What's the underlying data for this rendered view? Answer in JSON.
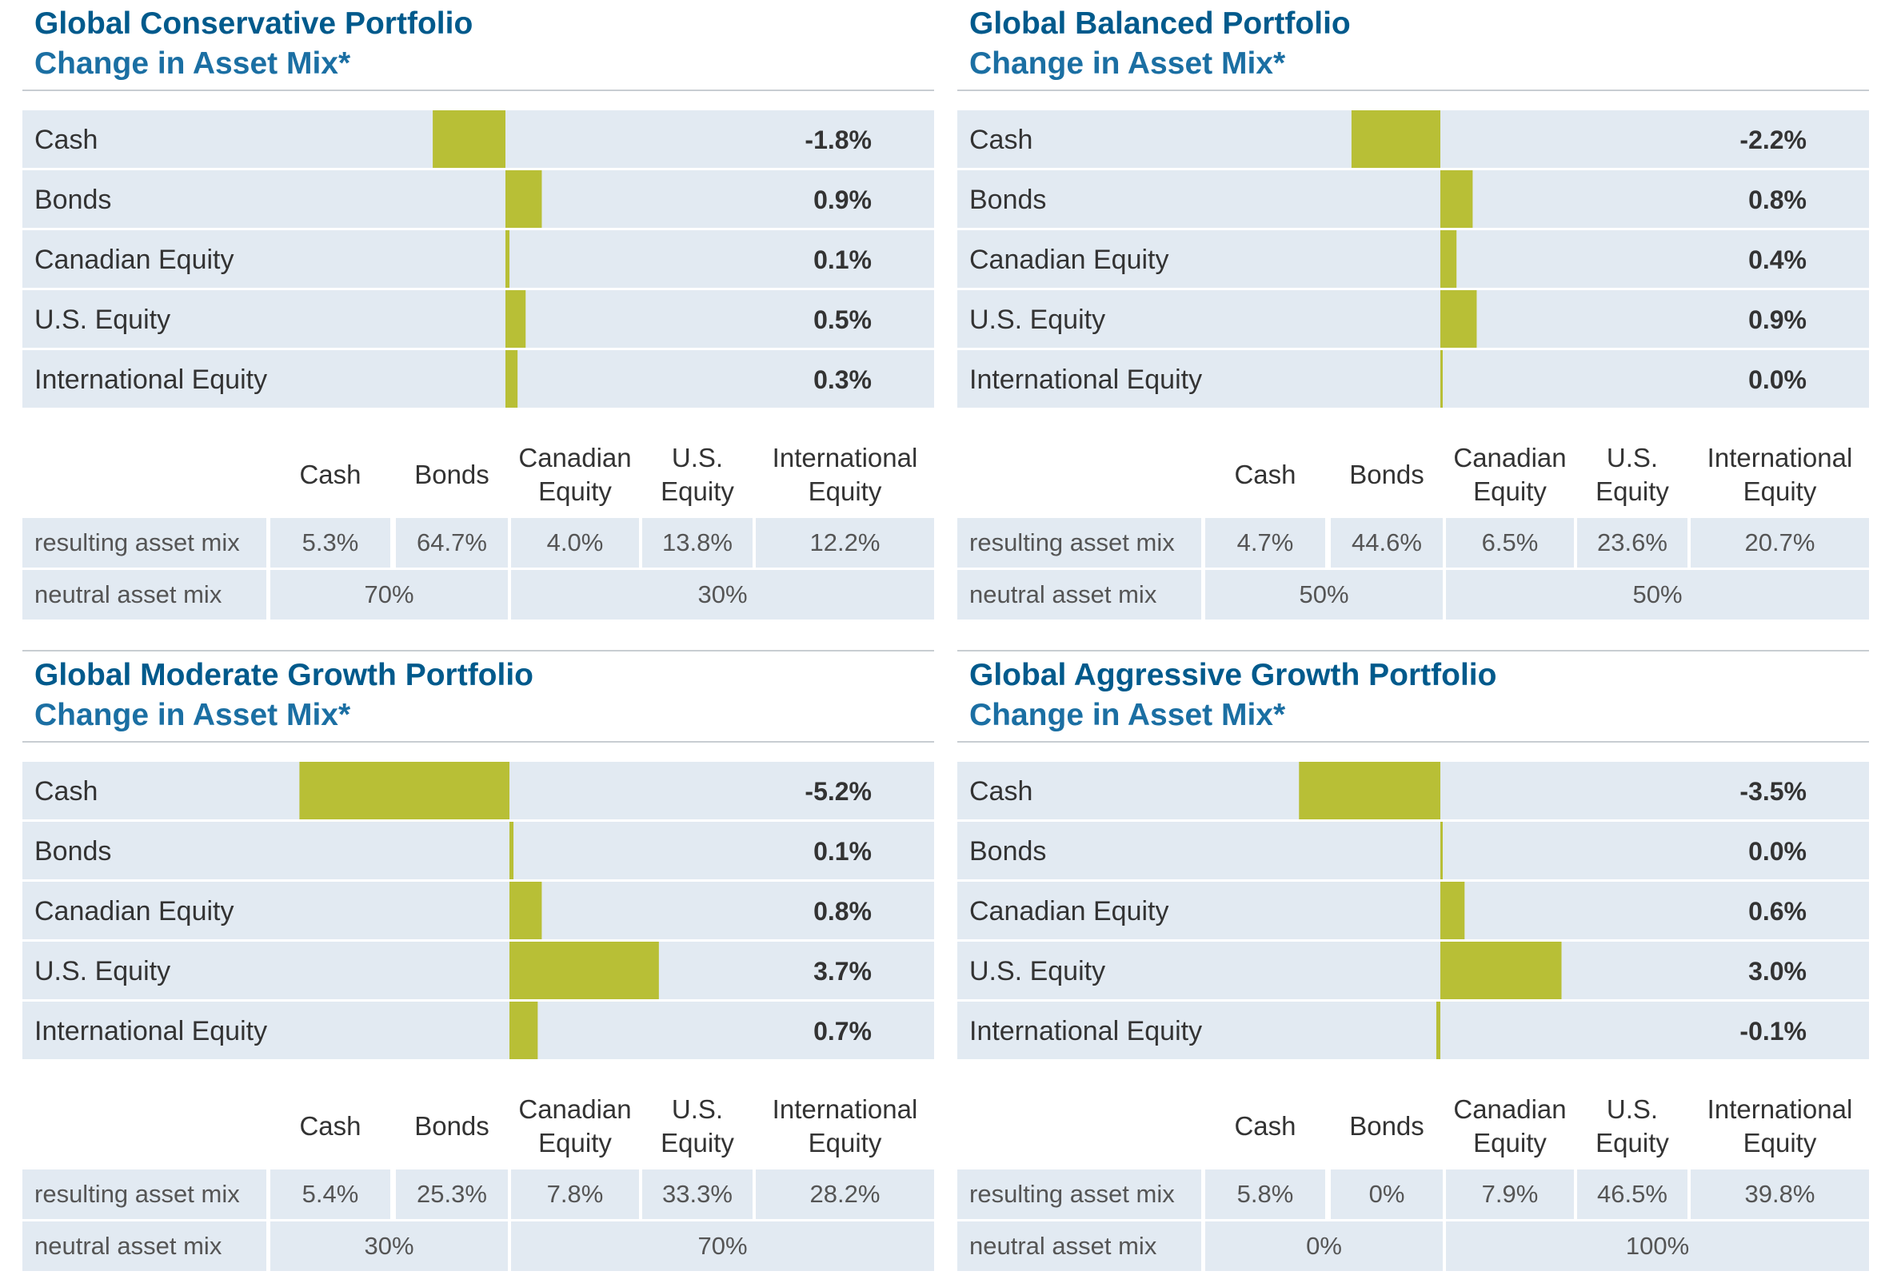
{
  "bar_color": "#b8bf36",
  "row_bg": "#e2eaf2",
  "title_color": "#005a8c",
  "subtitle_color": "#1b6fa3",
  "table": {
    "column_headers": [
      "Cash",
      "Bonds",
      "Canadian\nEquity",
      "U.S.\nEquity",
      "International\nEquity"
    ],
    "row_labels": {
      "resulting": "resulting asset mix",
      "neutral": "neutral asset mix"
    }
  },
  "chart_data": [
    {
      "type": "bar",
      "title": "Global Conservative Portfolio",
      "subtitle": "Change in Asset Mix*",
      "categories": [
        "Cash",
        "Bonds",
        "Canadian Equity",
        "U.S. Equity",
        "International Equity"
      ],
      "values": [
        -1.8,
        0.9,
        0.1,
        0.5,
        0.3
      ],
      "value_labels": [
        "-1.8%",
        "0.9%",
        "0.1%",
        "0.5%",
        "0.3%"
      ],
      "resulting_asset_mix": [
        "5.3%",
        "64.7%",
        "4.0%",
        "13.8%",
        "12.2%"
      ],
      "neutral_asset_mix": [
        "70%",
        "30%"
      ]
    },
    {
      "type": "bar",
      "title": "Global Balanced Portfolio",
      "subtitle": "Change in Asset Mix*",
      "categories": [
        "Cash",
        "Bonds",
        "Canadian Equity",
        "U.S. Equity",
        "International Equity"
      ],
      "values": [
        -2.2,
        0.8,
        0.4,
        0.9,
        0.0
      ],
      "value_labels": [
        "-2.2%",
        "0.8%",
        "0.4%",
        "0.9%",
        "0.0%"
      ],
      "resulting_asset_mix": [
        "4.7%",
        "44.6%",
        "6.5%",
        "23.6%",
        "20.7%"
      ],
      "neutral_asset_mix": [
        "50%",
        "50%"
      ]
    },
    {
      "type": "bar",
      "title": "Global Moderate Growth Portfolio",
      "subtitle": "Change in Asset Mix*",
      "categories": [
        "Cash",
        "Bonds",
        "Canadian Equity",
        "U.S. Equity",
        "International Equity"
      ],
      "values": [
        -5.2,
        0.1,
        0.8,
        3.7,
        0.7
      ],
      "value_labels": [
        "-5.2%",
        "0.1%",
        "0.8%",
        "3.7%",
        "0.7%"
      ],
      "resulting_asset_mix": [
        "5.4%",
        "25.3%",
        "7.8%",
        "33.3%",
        "28.2%"
      ],
      "neutral_asset_mix": [
        "30%",
        "70%"
      ]
    },
    {
      "type": "bar",
      "title": "Global Aggressive Growth Portfolio",
      "subtitle": "Change in Asset Mix*",
      "categories": [
        "Cash",
        "Bonds",
        "Canadian Equity",
        "U.S. Equity",
        "International Equity"
      ],
      "values": [
        -3.5,
        0.0,
        0.6,
        3.0,
        -0.1
      ],
      "value_labels": [
        "-3.5%",
        "0.0%",
        "0.6%",
        "3.0%",
        "-0.1%"
      ],
      "resulting_asset_mix": [
        "5.8%",
        "0%",
        "7.9%",
        "46.5%",
        "39.8%"
      ],
      "neutral_asset_mix": [
        "0%",
        "100%"
      ]
    }
  ]
}
